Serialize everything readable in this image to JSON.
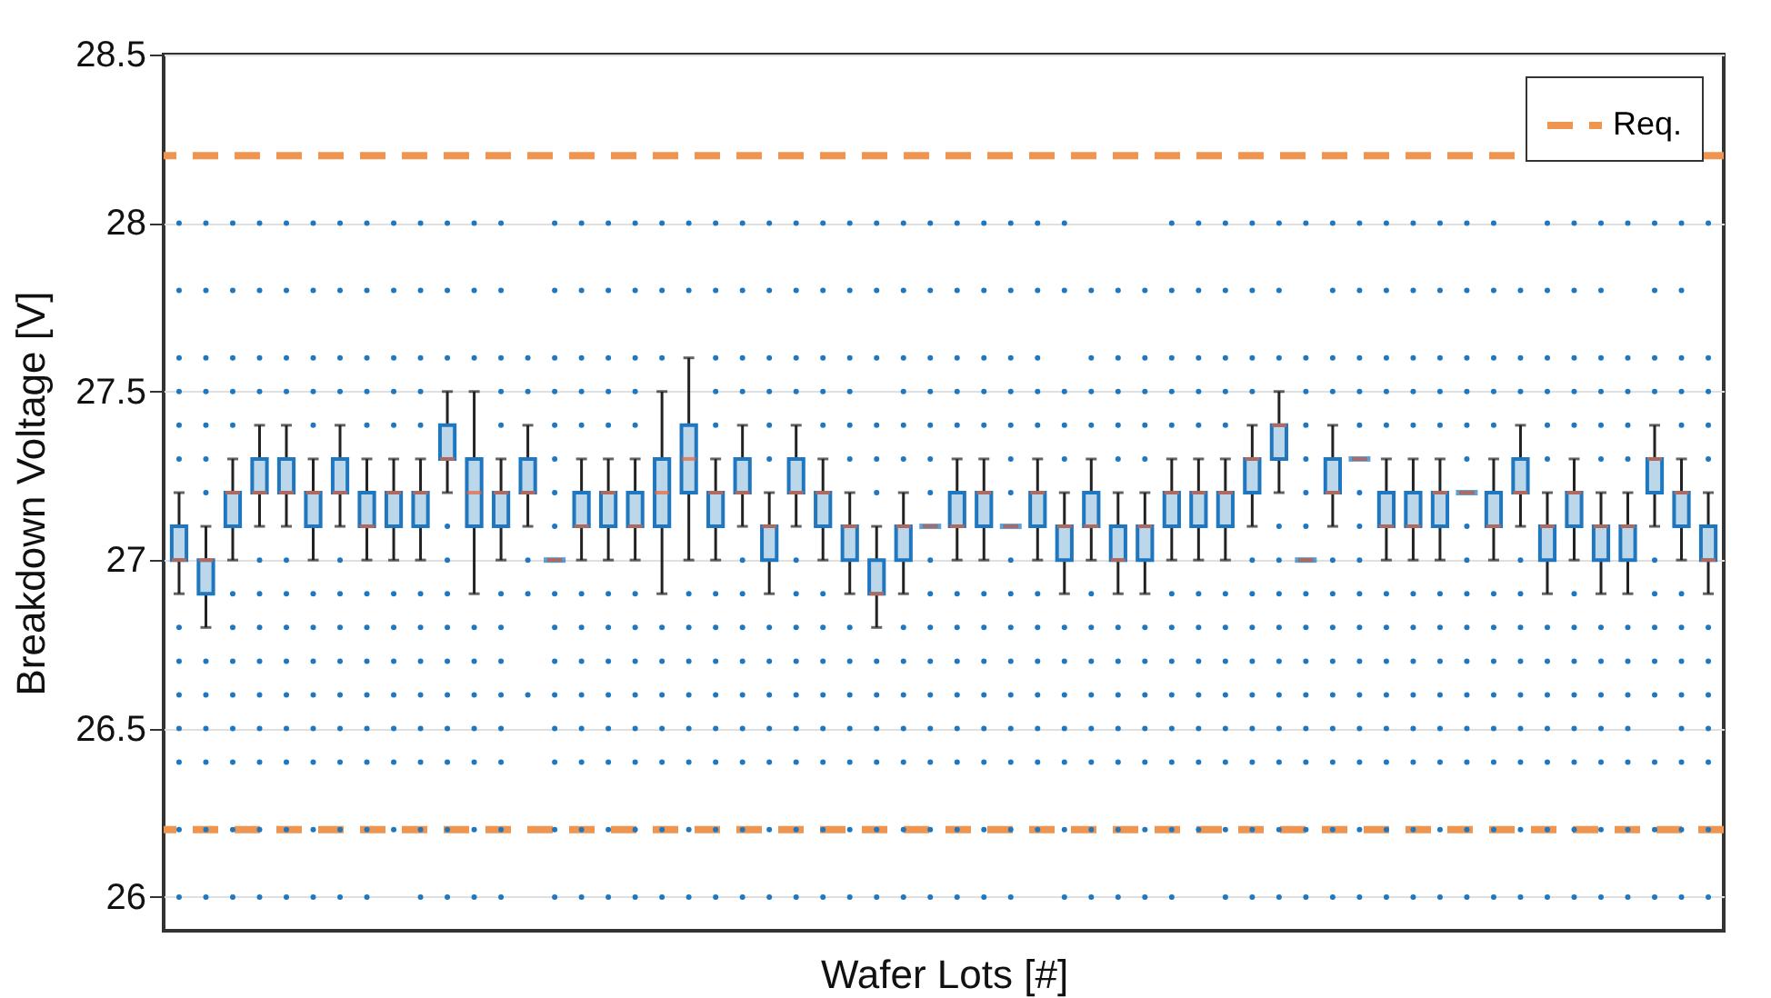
{
  "chart_data": {
    "type": "box",
    "xlabel": "Wafer Lots [#]",
    "ylabel": "Breakdown Voltage [V]",
    "categories": [
      null,
      null,
      null,
      null,
      null,
      null,
      null,
      null,
      null,
      null,
      null,
      null,
      null,
      null,
      null,
      null,
      null,
      null,
      null,
      null,
      null,
      null,
      null,
      null,
      null,
      null,
      null,
      null,
      null,
      null,
      null,
      null,
      null,
      null,
      null,
      null,
      null,
      null,
      null,
      null,
      null,
      null,
      null,
      null,
      null,
      null,
      null,
      null,
      null,
      null,
      null,
      null,
      null,
      null,
      null,
      null,
      null,
      null
    ],
    "ylim": [
      25.9,
      28.5
    ],
    "yticks": [
      26,
      26.5,
      27,
      27.5,
      28,
      28.5
    ],
    "grid": "y",
    "tick_labels": "y",
    "legend": "top right",
    "marker": "circle",
    "ref_lines": [
      {
        "axis": "y",
        "value": 28.2,
        "label": "Req.",
        "color": "#ef9550",
        "line_style": "dashed"
      },
      {
        "axis": "y",
        "value": 26.2,
        "color": "#ef9550",
        "line_style": "dashed"
      }
    ],
    "series": [
      {
        "color": "#1f77c0",
        "boxes": [
          {
            "low": 26.9,
            "q1": 27.0,
            "median": 27.0,
            "q3": 27.1,
            "high": 27.2,
            "outliers": [
              26.0,
              26.2,
              26.4,
              26.5,
              26.6,
              26.7,
              26.8,
              27.3,
              27.4,
              27.5,
              27.6,
              27.8,
              28.0
            ]
          },
          {
            "low": 26.8,
            "q1": 26.9,
            "median": 27.0,
            "q3": 27.0,
            "high": 27.1,
            "outliers": [
              26.0,
              26.2,
              26.4,
              26.5,
              26.6,
              26.7,
              27.2,
              27.3,
              27.4,
              27.5,
              27.6,
              27.8,
              28.0
            ]
          },
          {
            "low": 27.0,
            "q1": 27.1,
            "median": 27.2,
            "q3": 27.2,
            "high": 27.3,
            "outliers": [
              26.0,
              26.2,
              26.4,
              26.5,
              26.6,
              26.7,
              26.8,
              26.9,
              27.4,
              27.5,
              27.6,
              27.8,
              28.0
            ]
          },
          {
            "low": 27.1,
            "q1": 27.2,
            "median": 27.2,
            "q3": 27.3,
            "high": 27.4,
            "outliers": [
              26.0,
              26.2,
              26.4,
              26.5,
              26.6,
              26.7,
              26.8,
              26.9,
              27.0,
              27.5,
              27.6,
              27.8,
              28.0
            ]
          },
          {
            "low": 27.1,
            "q1": 27.2,
            "median": 27.2,
            "q3": 27.3,
            "high": 27.4,
            "outliers": [
              26.0,
              26.2,
              26.4,
              26.5,
              26.6,
              26.7,
              26.8,
              26.9,
              27.0,
              27.5,
              27.6,
              27.8,
              28.0
            ]
          },
          {
            "low": 27.0,
            "q1": 27.1,
            "median": 27.2,
            "q3": 27.2,
            "high": 27.3,
            "outliers": [
              26.0,
              26.2,
              26.4,
              26.5,
              26.6,
              26.7,
              26.8,
              26.9,
              27.4,
              27.5,
              27.6,
              27.8,
              28.0
            ]
          },
          {
            "low": 27.1,
            "q1": 27.2,
            "median": 27.2,
            "q3": 27.3,
            "high": 27.4,
            "outliers": [
              26.0,
              26.2,
              26.4,
              26.5,
              26.6,
              26.7,
              26.8,
              26.9,
              27.0,
              27.5,
              27.6,
              27.8,
              28.0
            ]
          },
          {
            "low": 27.0,
            "q1": 27.1,
            "median": 27.1,
            "q3": 27.2,
            "high": 27.3,
            "outliers": [
              26.0,
              26.2,
              26.4,
              26.5,
              26.6,
              26.7,
              26.8,
              26.9,
              27.4,
              27.5,
              27.6,
              27.8,
              28.0
            ]
          },
          {
            "low": 27.0,
            "q1": 27.1,
            "median": 27.2,
            "q3": 27.2,
            "high": 27.3,
            "outliers": [
              26.2,
              26.4,
              26.5,
              26.6,
              26.7,
              26.8,
              26.9,
              27.4,
              27.5,
              27.6,
              27.8,
              28.0
            ]
          },
          {
            "low": 27.0,
            "q1": 27.1,
            "median": 27.2,
            "q3": 27.2,
            "high": 27.3,
            "outliers": [
              26.0,
              26.2,
              26.4,
              26.5,
              26.6,
              26.7,
              26.8,
              26.9,
              27.4,
              27.5,
              27.6,
              27.8,
              28.0
            ]
          },
          {
            "low": 27.2,
            "q1": 27.3,
            "median": 27.3,
            "q3": 27.4,
            "high": 27.5,
            "outliers": [
              26.0,
              26.2,
              26.4,
              26.5,
              26.6,
              26.7,
              26.8,
              26.9,
              27.0,
              27.1,
              27.6,
              27.8,
              28.0
            ]
          },
          {
            "low": 26.9,
            "q1": 27.1,
            "median": 27.2,
            "q3": 27.3,
            "high": 27.5,
            "outliers": [
              26.0,
              26.2,
              26.4,
              26.5,
              26.6,
              26.7,
              26.8,
              27.6,
              27.8,
              28.0
            ]
          },
          {
            "low": 27.0,
            "q1": 27.1,
            "median": 27.2,
            "q3": 27.2,
            "high": 27.3,
            "outliers": [
              26.0,
              26.2,
              26.4,
              26.5,
              26.6,
              26.7,
              26.8,
              26.9,
              27.4,
              27.5,
              27.6,
              27.8,
              28.0
            ]
          },
          {
            "low": 27.1,
            "q1": 27.2,
            "median": 27.2,
            "q3": 27.3,
            "high": 27.4,
            "outliers": [
              26.6,
              26.9,
              27.0,
              27.5,
              27.6
            ]
          },
          {
            "low": 27.0,
            "q1": 27.0,
            "median": 27.0,
            "q3": 27.0,
            "high": 27.0,
            "outliers": [
              26.0,
              26.2,
              26.4,
              26.5,
              26.6,
              26.7,
              26.8,
              26.9,
              27.1,
              27.2,
              27.3,
              27.4,
              27.5,
              27.6,
              27.8,
              28.0
            ]
          },
          {
            "low": 27.0,
            "q1": 27.1,
            "median": 27.1,
            "q3": 27.2,
            "high": 27.3,
            "outliers": [
              26.0,
              26.2,
              26.4,
              26.5,
              26.6,
              26.7,
              26.8,
              26.9,
              27.4,
              27.5,
              27.6,
              27.8,
              28.0
            ]
          },
          {
            "low": 27.0,
            "q1": 27.1,
            "median": 27.2,
            "q3": 27.2,
            "high": 27.3,
            "outliers": [
              26.0,
              26.2,
              26.4,
              26.5,
              26.6,
              26.7,
              26.8,
              26.9,
              27.4,
              27.5,
              27.6,
              27.8,
              28.0
            ]
          },
          {
            "low": 27.0,
            "q1": 27.1,
            "median": 27.1,
            "q3": 27.2,
            "high": 27.3,
            "outliers": [
              26.0,
              26.2,
              26.4,
              26.5,
              26.6,
              26.7,
              26.8,
              26.9,
              27.4,
              27.5,
              27.6,
              27.8,
              28.0
            ]
          },
          {
            "low": 26.9,
            "q1": 27.1,
            "median": 27.2,
            "q3": 27.3,
            "high": 27.5,
            "outliers": [
              26.0,
              26.2,
              26.4,
              26.5,
              26.6,
              26.7,
              26.8,
              27.6,
              27.8,
              28.0
            ]
          },
          {
            "low": 27.0,
            "q1": 27.2,
            "median": 27.3,
            "q3": 27.4,
            "high": 27.6,
            "outliers": [
              26.0,
              26.2,
              26.4,
              26.5,
              26.6,
              26.7,
              26.8,
              26.9,
              27.8,
              28.0
            ]
          },
          {
            "low": 27.0,
            "q1": 27.1,
            "median": 27.2,
            "q3": 27.2,
            "high": 27.3,
            "outliers": [
              26.0,
              26.2,
              26.4,
              26.5,
              26.6,
              26.7,
              26.8,
              26.9,
              27.4,
              27.5,
              27.6,
              27.8,
              28.0
            ]
          },
          {
            "low": 27.1,
            "q1": 27.2,
            "median": 27.2,
            "q3": 27.3,
            "high": 27.4,
            "outliers": [
              26.0,
              26.2,
              26.4,
              26.5,
              26.6,
              26.7,
              26.8,
              26.9,
              27.0,
              27.5,
              27.6,
              27.8,
              28.0
            ]
          },
          {
            "low": 26.9,
            "q1": 27.0,
            "median": 27.1,
            "q3": 27.1,
            "high": 27.2,
            "outliers": [
              26.0,
              26.2,
              26.4,
              26.5,
              26.6,
              26.7,
              26.8,
              27.3,
              27.4,
              27.5,
              27.6,
              27.8,
              28.0
            ]
          },
          {
            "low": 27.1,
            "q1": 27.2,
            "median": 27.2,
            "q3": 27.3,
            "high": 27.4,
            "outliers": [
              26.0,
              26.2,
              26.4,
              26.5,
              26.6,
              26.7,
              26.8,
              26.9,
              27.0,
              27.5,
              27.6,
              27.8,
              28.0
            ]
          },
          {
            "low": 27.0,
            "q1": 27.1,
            "median": 27.2,
            "q3": 27.2,
            "high": 27.3,
            "outliers": [
              26.0,
              26.2,
              26.4,
              26.5,
              26.6,
              26.7,
              26.8,
              26.9,
              27.4,
              27.5,
              27.6,
              27.8,
              28.0
            ]
          },
          {
            "low": 26.9,
            "q1": 27.0,
            "median": 27.1,
            "q3": 27.1,
            "high": 27.2,
            "outliers": [
              26.0,
              26.2,
              26.4,
              26.5,
              26.6,
              26.7,
              26.8,
              27.3,
              27.4,
              27.5,
              27.6,
              27.8,
              28.0
            ]
          },
          {
            "low": 26.8,
            "q1": 26.9,
            "median": 26.9,
            "q3": 27.0,
            "high": 27.1,
            "outliers": [
              26.0,
              26.2,
              26.4,
              26.5,
              26.6,
              26.7,
              27.2,
              27.3,
              27.4,
              27.6,
              27.8,
              28.0
            ]
          },
          {
            "low": 26.9,
            "q1": 27.0,
            "median": 27.1,
            "q3": 27.1,
            "high": 27.2,
            "outliers": [
              26.0,
              26.2,
              26.4,
              26.5,
              26.6,
              26.7,
              26.8,
              27.3,
              27.4,
              27.5,
              27.6,
              27.8,
              28.0
            ]
          },
          {
            "low": 27.1,
            "q1": 27.1,
            "median": 27.1,
            "q3": 27.1,
            "high": 27.1,
            "outliers": [
              26.0,
              26.2,
              26.4,
              26.5,
              26.6,
              26.7,
              26.8,
              26.9,
              27.0,
              27.2,
              27.3,
              27.4,
              27.5,
              27.6,
              27.8,
              28.0
            ]
          },
          {
            "low": 27.0,
            "q1": 27.1,
            "median": 27.1,
            "q3": 27.2,
            "high": 27.3,
            "outliers": [
              26.0,
              26.2,
              26.4,
              26.5,
              26.6,
              26.7,
              26.8,
              26.9,
              27.4,
              27.5,
              27.6,
              27.8,
              28.0
            ]
          },
          {
            "low": 27.0,
            "q1": 27.1,
            "median": 27.2,
            "q3": 27.2,
            "high": 27.3,
            "outliers": [
              26.0,
              26.2,
              26.4,
              26.5,
              26.6,
              26.7,
              26.8,
              26.9,
              27.4,
              27.5,
              27.6,
              27.8,
              28.0
            ]
          },
          {
            "low": 27.1,
            "q1": 27.1,
            "median": 27.1,
            "q3": 27.1,
            "high": 27.1,
            "outliers": [
              26.0,
              26.2,
              26.4,
              26.5,
              26.6,
              26.7,
              26.8,
              26.9,
              27.0,
              27.2,
              27.3,
              27.4,
              27.5,
              27.6,
              27.8,
              28.0
            ]
          },
          {
            "low": 27.0,
            "q1": 27.1,
            "median": 27.2,
            "q3": 27.2,
            "high": 27.3,
            "outliers": [
              26.2,
              26.4,
              26.5,
              26.6,
              26.7,
              26.8,
              26.9,
              27.4,
              27.5,
              27.6,
              27.8,
              28.0
            ]
          },
          {
            "low": 26.9,
            "q1": 27.0,
            "median": 27.1,
            "q3": 27.1,
            "high": 27.2,
            "outliers": [
              26.0,
              26.2,
              26.4,
              26.5,
              26.6,
              26.7,
              26.8,
              27.3,
              27.4,
              27.5,
              27.8,
              28.0
            ]
          },
          {
            "low": 27.0,
            "q1": 27.1,
            "median": 27.1,
            "q3": 27.2,
            "high": 27.3,
            "outliers": [
              26.0,
              26.2,
              26.4,
              26.5,
              26.6,
              26.7,
              26.8,
              26.9,
              27.4,
              27.5,
              27.6,
              27.8
            ]
          },
          {
            "low": 26.9,
            "q1": 27.0,
            "median": 27.0,
            "q3": 27.1,
            "high": 27.2,
            "outliers": [
              26.0,
              26.2,
              26.4,
              26.5,
              26.6,
              26.7,
              26.8,
              27.3,
              27.4,
              27.5,
              27.6,
              27.8
            ]
          },
          {
            "low": 26.9,
            "q1": 27.0,
            "median": 27.1,
            "q3": 27.1,
            "high": 27.2,
            "outliers": [
              26.0,
              26.2,
              26.4,
              26.5,
              26.6,
              26.7,
              26.8,
              27.3,
              27.4,
              27.5,
              27.6,
              27.8
            ]
          },
          {
            "low": 27.0,
            "q1": 27.1,
            "median": 27.2,
            "q3": 27.2,
            "high": 27.3,
            "outliers": [
              26.0,
              26.2,
              26.4,
              26.5,
              26.6,
              26.7,
              26.8,
              26.9,
              27.4,
              27.5,
              27.6,
              27.8,
              28.0
            ]
          },
          {
            "low": 27.0,
            "q1": 27.1,
            "median": 27.2,
            "q3": 27.2,
            "high": 27.3,
            "outliers": [
              26.2,
              26.4,
              26.5,
              26.6,
              26.7,
              26.8,
              26.9,
              27.4,
              27.5,
              27.6,
              27.8,
              28.0
            ]
          },
          {
            "low": 27.0,
            "q1": 27.1,
            "median": 27.2,
            "q3": 27.2,
            "high": 27.3,
            "outliers": [
              26.0,
              26.2,
              26.4,
              26.5,
              26.6,
              26.7,
              26.8,
              26.9,
              27.4,
              27.5,
              27.6,
              27.8,
              28.0
            ]
          },
          {
            "low": 27.1,
            "q1": 27.2,
            "median": 27.3,
            "q3": 27.3,
            "high": 27.4,
            "outliers": [
              26.0,
              26.2,
              26.4,
              26.5,
              26.6,
              26.7,
              26.8,
              26.9,
              27.0,
              27.5,
              27.6,
              27.8,
              28.0
            ]
          },
          {
            "low": 27.2,
            "q1": 27.3,
            "median": 27.4,
            "q3": 27.4,
            "high": 27.5,
            "outliers": [
              26.0,
              26.2,
              26.4,
              26.5,
              26.6,
              26.7,
              26.8,
              26.9,
              27.0,
              27.1,
              27.6,
              27.8,
              28.0
            ]
          },
          {
            "low": 27.0,
            "q1": 27.0,
            "median": 27.0,
            "q3": 27.0,
            "high": 27.0,
            "outliers": [
              26.0,
              26.2,
              26.4,
              26.5,
              26.6,
              26.7,
              26.8,
              26.9,
              27.1,
              27.2,
              27.3,
              27.4,
              27.5,
              27.6,
              28.0
            ]
          },
          {
            "low": 27.1,
            "q1": 27.2,
            "median": 27.2,
            "q3": 27.3,
            "high": 27.4,
            "outliers": [
              26.0,
              26.2,
              26.4,
              26.5,
              26.6,
              26.7,
              26.8,
              26.9,
              27.0,
              27.5,
              27.6,
              27.8,
              28.0
            ]
          },
          {
            "low": 27.3,
            "q1": 27.3,
            "median": 27.3,
            "q3": 27.3,
            "high": 27.3,
            "outliers": [
              26.0,
              26.2,
              26.4,
              26.5,
              26.6,
              26.7,
              26.8,
              26.9,
              27.0,
              27.1,
              27.2,
              27.4,
              27.5,
              27.6,
              27.8,
              28.0
            ]
          },
          {
            "low": 27.0,
            "q1": 27.1,
            "median": 27.1,
            "q3": 27.2,
            "high": 27.3,
            "outliers": [
              26.0,
              26.2,
              26.4,
              26.5,
              26.6,
              26.7,
              26.8,
              26.9,
              27.4,
              27.5,
              27.6,
              27.8,
              28.0
            ]
          },
          {
            "low": 27.0,
            "q1": 27.1,
            "median": 27.1,
            "q3": 27.2,
            "high": 27.3,
            "outliers": [
              26.0,
              26.2,
              26.4,
              26.5,
              26.6,
              26.7,
              26.8,
              26.9,
              27.4,
              27.5,
              27.6,
              27.8,
              28.0
            ]
          },
          {
            "low": 27.0,
            "q1": 27.1,
            "median": 27.2,
            "q3": 27.2,
            "high": 27.3,
            "outliers": [
              26.0,
              26.2,
              26.4,
              26.5,
              26.6,
              26.7,
              26.8,
              26.9,
              27.4,
              27.5,
              27.6,
              27.8,
              28.0
            ]
          },
          {
            "low": 27.2,
            "q1": 27.2,
            "median": 27.2,
            "q3": 27.2,
            "high": 27.2,
            "outliers": [
              26.0,
              26.2,
              26.4,
              26.5,
              26.6,
              26.7,
              26.8,
              26.9,
              27.0,
              27.1,
              27.3,
              27.4,
              27.5,
              27.6,
              27.8,
              28.0
            ]
          },
          {
            "low": 27.0,
            "q1": 27.1,
            "median": 27.1,
            "q3": 27.2,
            "high": 27.3,
            "outliers": [
              26.0,
              26.2,
              26.4,
              26.5,
              26.6,
              26.7,
              26.8,
              26.9,
              27.4,
              27.5,
              27.6,
              27.8,
              28.0
            ]
          },
          {
            "low": 27.1,
            "q1": 27.2,
            "median": 27.2,
            "q3": 27.3,
            "high": 27.4,
            "outliers": [
              26.0,
              26.2,
              26.4,
              26.5,
              26.6,
              26.7,
              26.8,
              26.9,
              27.0,
              27.5,
              27.6,
              27.8
            ]
          },
          {
            "low": 26.9,
            "q1": 27.0,
            "median": 27.1,
            "q3": 27.1,
            "high": 27.2,
            "outliers": [
              26.0,
              26.2,
              26.4,
              26.5,
              26.6,
              26.7,
              26.8,
              27.3,
              27.4,
              27.5,
              27.6,
              27.8,
              28.0
            ]
          },
          {
            "low": 27.0,
            "q1": 27.1,
            "median": 27.2,
            "q3": 27.2,
            "high": 27.3,
            "outliers": [
              26.0,
              26.2,
              26.4,
              26.5,
              26.6,
              26.7,
              26.8,
              26.9,
              27.4,
              27.5,
              27.6,
              27.8,
              28.0
            ]
          },
          {
            "low": 26.9,
            "q1": 27.0,
            "median": 27.1,
            "q3": 27.1,
            "high": 27.2,
            "outliers": [
              26.0,
              26.2,
              26.4,
              26.5,
              26.6,
              26.7,
              26.8,
              27.3,
              27.4,
              27.5,
              27.6,
              27.8,
              28.0
            ]
          },
          {
            "low": 26.9,
            "q1": 27.0,
            "median": 27.1,
            "q3": 27.1,
            "high": 27.2,
            "outliers": [
              26.0,
              26.2,
              26.4,
              26.5,
              26.6,
              26.7,
              26.8,
              27.3,
              27.4,
              27.5,
              27.6,
              28.0
            ]
          },
          {
            "low": 27.1,
            "q1": 27.2,
            "median": 27.3,
            "q3": 27.3,
            "high": 27.4,
            "outliers": [
              26.0,
              26.2,
              26.4,
              26.6,
              26.7,
              26.8,
              26.9,
              27.0,
              27.5,
              27.6,
              27.8,
              28.0
            ]
          },
          {
            "low": 27.0,
            "q1": 27.1,
            "median": 27.2,
            "q3": 27.2,
            "high": 27.3,
            "outliers": [
              26.0,
              26.2,
              26.4,
              26.5,
              26.6,
              26.7,
              26.8,
              26.9,
              27.4,
              27.5,
              27.6,
              27.8,
              28.0
            ]
          },
          {
            "low": 26.9,
            "q1": 27.0,
            "median": 27.0,
            "q3": 27.1,
            "high": 27.2,
            "outliers": [
              26.0,
              26.2,
              26.4,
              26.5,
              26.6,
              26.7,
              26.8,
              27.3,
              27.4,
              27.5,
              27.6,
              28.0
            ]
          }
        ]
      }
    ]
  }
}
